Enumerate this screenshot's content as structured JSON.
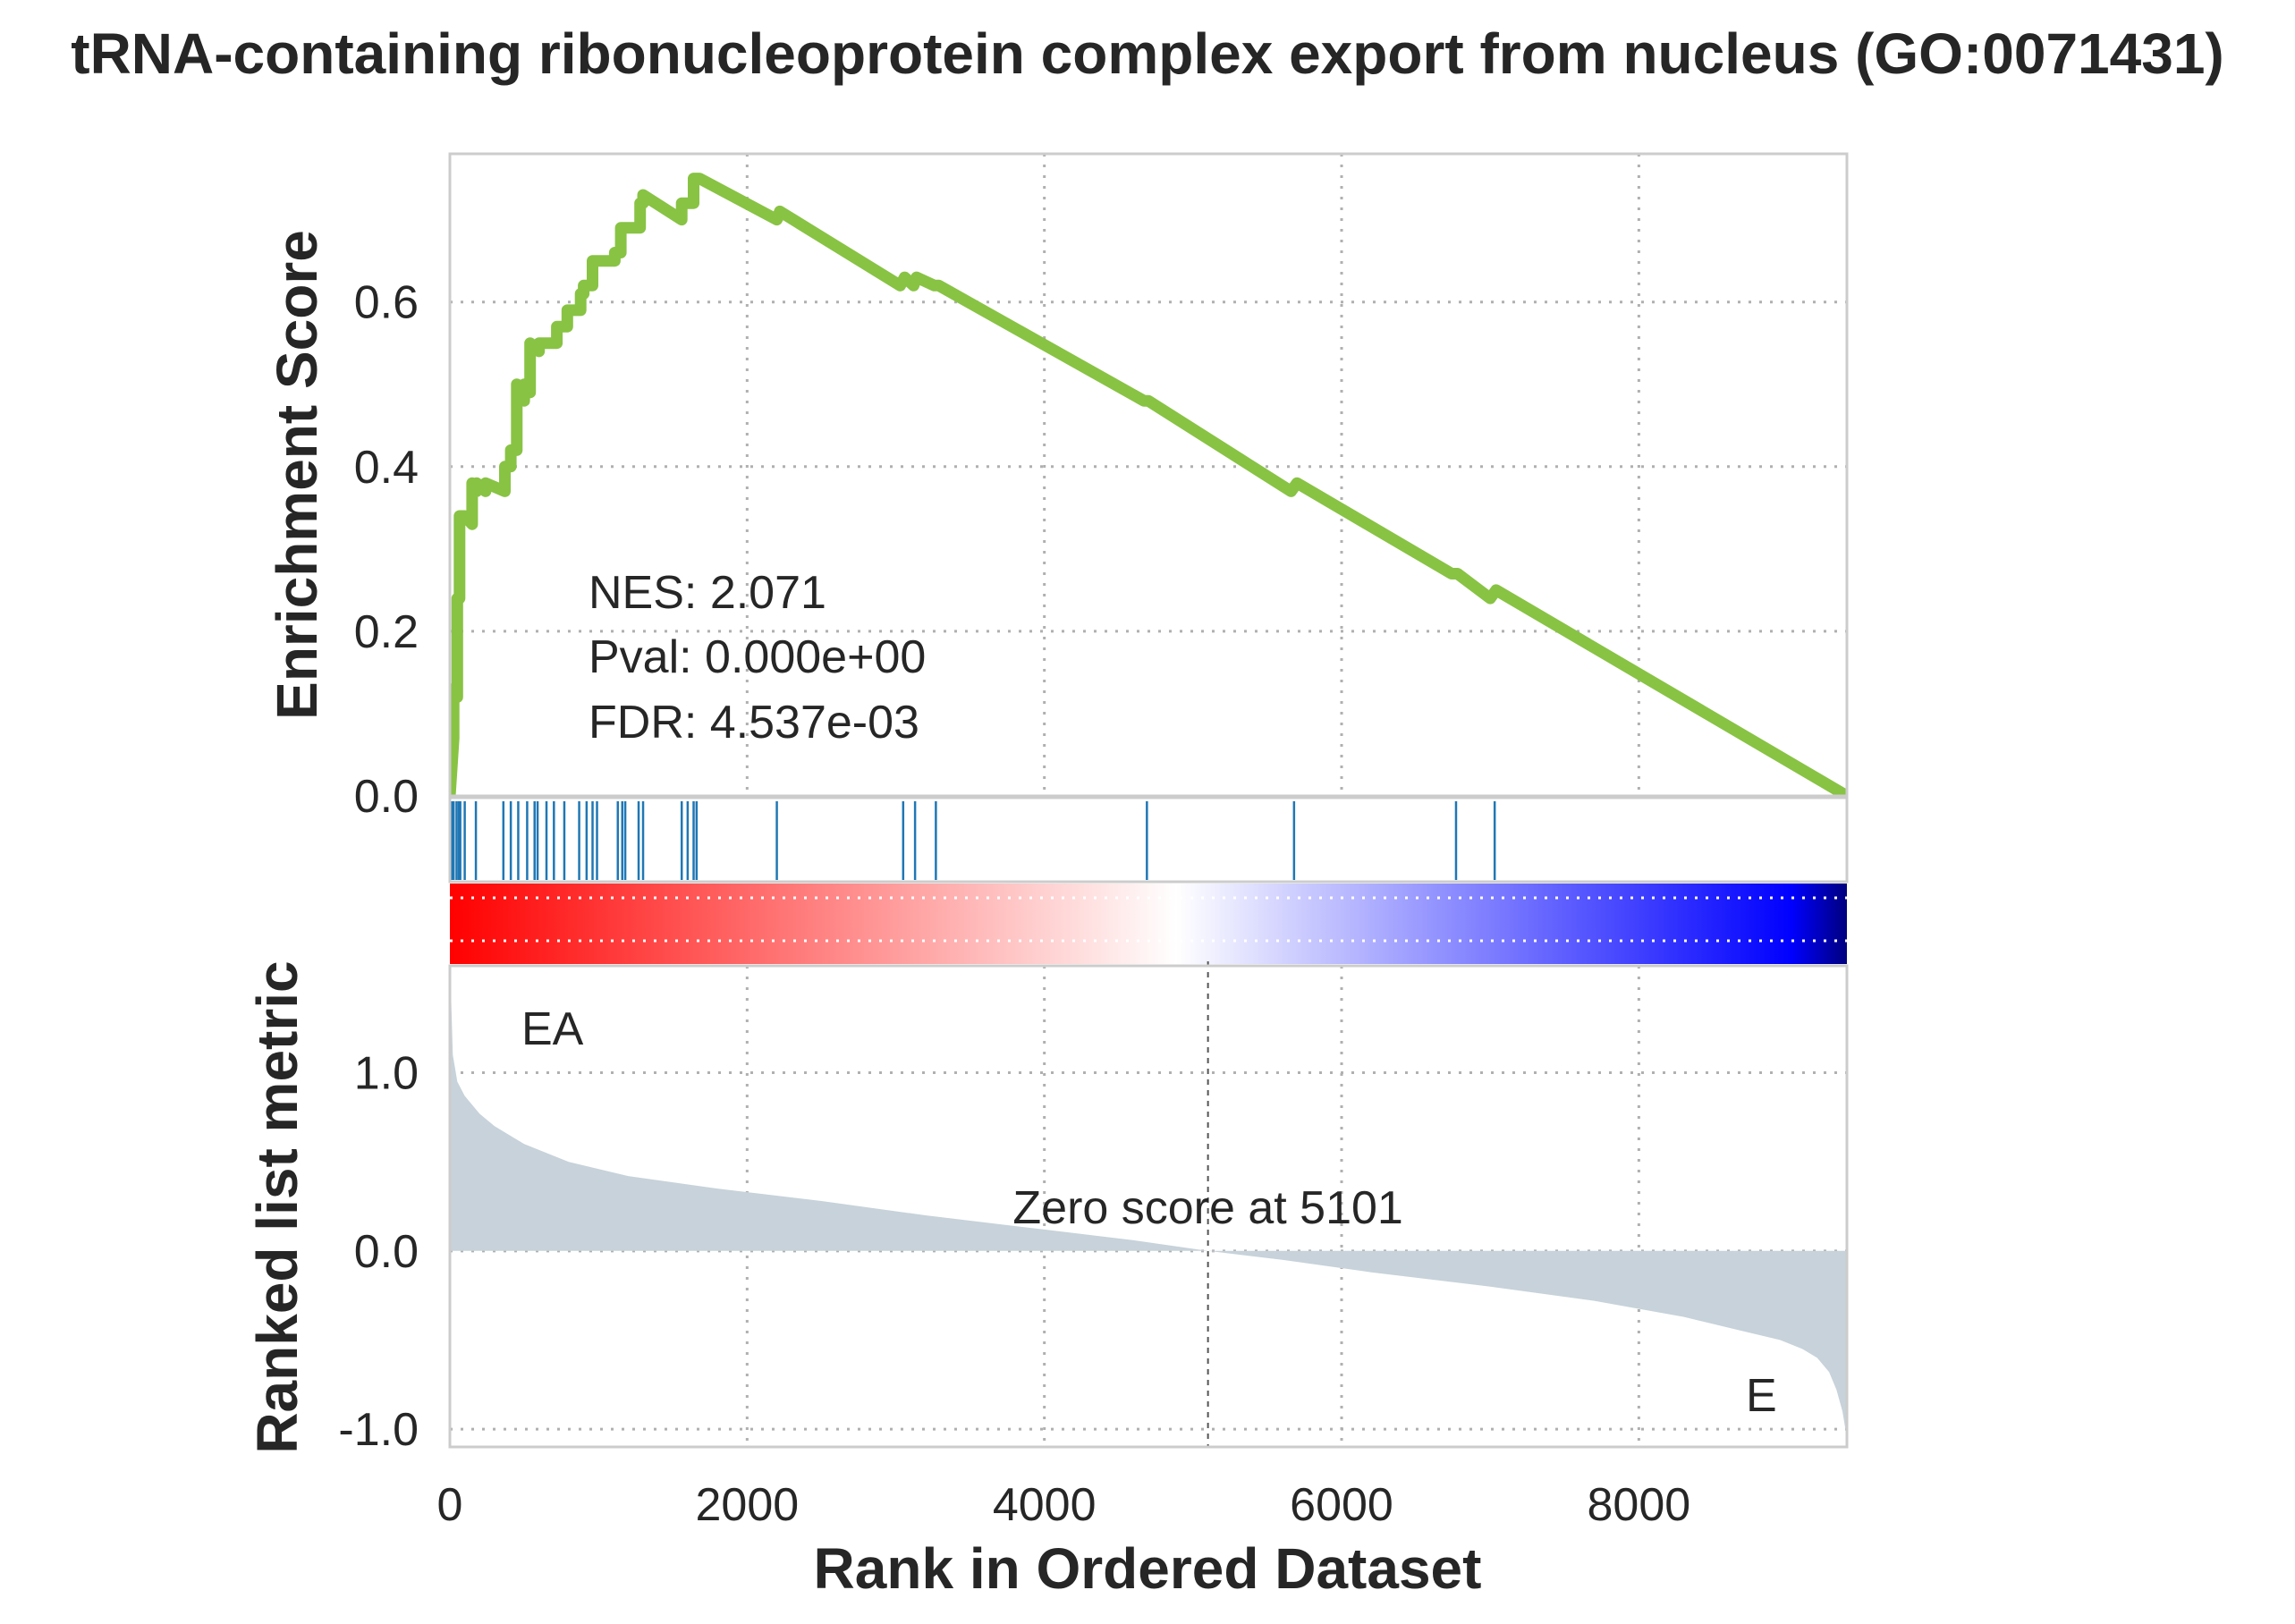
{
  "chart_data": {
    "type": "line",
    "title": "tRNA-containing ribonucleoprotein complex export from nucleus (GO:0071431)",
    "xlabel": "Rank in Ordered Dataset",
    "xlim": [
      0,
      9400
    ],
    "x_ticks": [
      "0",
      "2000",
      "4000",
      "6000",
      "8000"
    ],
    "x_tick_values": [
      0,
      2000,
      4000,
      6000,
      8000
    ],
    "grid": true,
    "enrichment_panel": {
      "ylabel": "Enrichment Score",
      "ylim": [
        0,
        0.78
      ],
      "y_ticks": [
        "0.0",
        "0.2",
        "0.4",
        "0.6"
      ],
      "y_tick_values": [
        0.0,
        0.2,
        0.4,
        0.6
      ],
      "line_color": "#88c344",
      "series": [
        {
          "x": [
            0,
            25,
            25,
            50,
            50,
            65,
            65,
            100,
            100,
            150,
            150,
            180,
            180,
            240,
            240,
            370,
            370,
            410,
            410,
            450,
            450,
            500,
            500,
            540,
            540,
            600,
            600,
            650,
            650,
            720,
            720,
            750,
            750,
            790,
            790,
            810,
            810,
            880,
            880,
            900,
            900,
            960,
            960,
            990,
            990,
            1110,
            1110,
            1150,
            1150,
            1200,
            1200,
            1280,
            1280,
            1300,
            1300,
            1560,
            1560,
            1640,
            1640,
            1680,
            2200,
            2220,
            3030,
            3060,
            3120,
            3140,
            3260,
            3290,
            4670,
            4700,
            5660,
            5700,
            6740,
            6780,
            7000,
            7040,
            9400
          ],
          "y": [
            0.0,
            0.07,
            0.13,
            0.12,
            0.24,
            0.24,
            0.34,
            0.34,
            0.34,
            0.33,
            0.38,
            0.37,
            0.38,
            0.37,
            0.38,
            0.37,
            0.4,
            0.4,
            0.42,
            0.42,
            0.5,
            0.48,
            0.5,
            0.49,
            0.55,
            0.54,
            0.55,
            0.55,
            0.55,
            0.55,
            0.57,
            0.57,
            0.57,
            0.57,
            0.59,
            0.59,
            0.59,
            0.59,
            0.61,
            0.61,
            0.62,
            0.62,
            0.65,
            0.65,
            0.65,
            0.65,
            0.66,
            0.66,
            0.69,
            0.69,
            0.69,
            0.69,
            0.72,
            0.72,
            0.73,
            0.7,
            0.72,
            0.72,
            0.75,
            0.75,
            0.7,
            0.71,
            0.62,
            0.63,
            0.62,
            0.63,
            0.62,
            0.62,
            0.48,
            0.48,
            0.37,
            0.38,
            0.27,
            0.27,
            0.24,
            0.25,
            0.0
          ]
        }
      ],
      "annotations": [
        "NES: 2.071",
        "Pval: 0.000e+00",
        "FDR: 4.537e-03"
      ]
    },
    "hits_panel": {
      "color": "#1f77b4",
      "hit_ranks": [
        15,
        25,
        45,
        60,
        70,
        100,
        175,
        360,
        410,
        460,
        520,
        570,
        590,
        650,
        700,
        770,
        870,
        920,
        960,
        990,
        1130,
        1160,
        1180,
        1270,
        1300,
        1560,
        1600,
        1640,
        1660,
        2200,
        3050,
        3130,
        3270,
        4690,
        5680,
        6770,
        7030
      ]
    },
    "colorbar": {
      "colors": [
        "#ff0000",
        "#ffffff",
        "#0000ff",
        "#00007f"
      ]
    },
    "ranked_panel": {
      "ylabel": "Ranked list metric",
      "ylim": [
        -1.1,
        1.6
      ],
      "y_ticks": [
        "1.0",
        "0.0",
        "-1.0"
      ],
      "y_tick_values": [
        1.0,
        0.0,
        -1.0
      ],
      "fill_color": "#c7d2da",
      "series": [
        {
          "x": [
            0,
            20,
            50,
            100,
            200,
            300,
            500,
            800,
            1200,
            1800,
            2500,
            3200,
            4000,
            4600,
            5101,
            5600,
            6200,
            7000,
            7700,
            8300,
            8700,
            8950,
            9100,
            9200,
            9280,
            9330,
            9370,
            9400
          ],
          "y": [
            1.65,
            1.1,
            0.95,
            0.87,
            0.77,
            0.7,
            0.6,
            0.5,
            0.42,
            0.35,
            0.28,
            0.2,
            0.12,
            0.06,
            0.0,
            -0.05,
            -0.12,
            -0.2,
            -0.28,
            -0.37,
            -0.45,
            -0.5,
            -0.55,
            -0.6,
            -0.68,
            -0.78,
            -0.9,
            -1.05
          ]
        }
      ],
      "zero_cross_rank": 5101,
      "zero_label": "Zero score at 5101",
      "left_label": "EA",
      "left_label_color": "#ff0000",
      "right_label": "E",
      "right_label_color": "#0000ff"
    }
  }
}
